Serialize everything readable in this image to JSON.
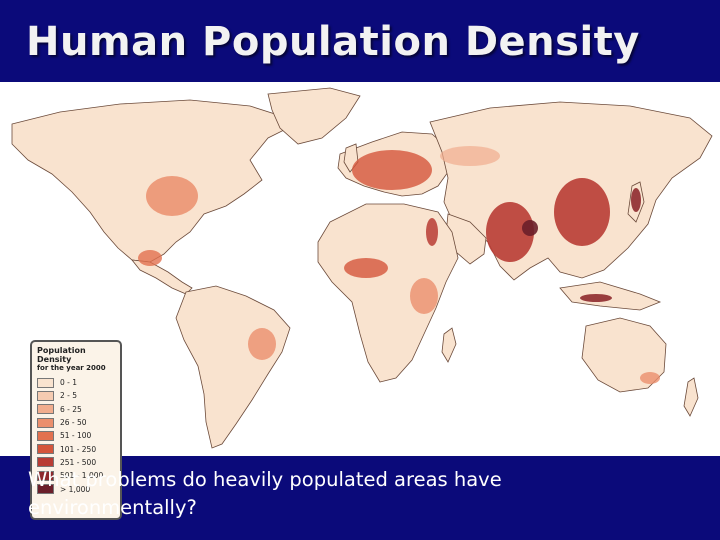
{
  "slide": {
    "title": "Human Population Density",
    "caption": "What problems do heavily populated areas have environmentally?"
  },
  "legend": {
    "title": "Population Density",
    "subtitle": "for the year 2000",
    "items": [
      {
        "label": "0 - 1",
        "color": "#f9e3cf"
      },
      {
        "label": "2 - 5",
        "color": "#f5cbb1"
      },
      {
        "label": "6 - 25",
        "color": "#f1ad8e"
      },
      {
        "label": "26 - 50",
        "color": "#eb8f6d"
      },
      {
        "label": "51 - 100",
        "color": "#e2714f"
      },
      {
        "label": "101 - 250",
        "color": "#d4553b"
      },
      {
        "label": "251 - 500",
        "color": "#b83c34"
      },
      {
        "label": "501 - 1,000",
        "color": "#8e2a2e"
      },
      {
        "label": "> 1,000",
        "color": "#6a1f2a"
      }
    ]
  },
  "colors": {
    "slide_background": "#0b0a7a",
    "map_background": "#ffffff",
    "land_base": "#f9e3cf",
    "borders": "#6b4a3a"
  }
}
